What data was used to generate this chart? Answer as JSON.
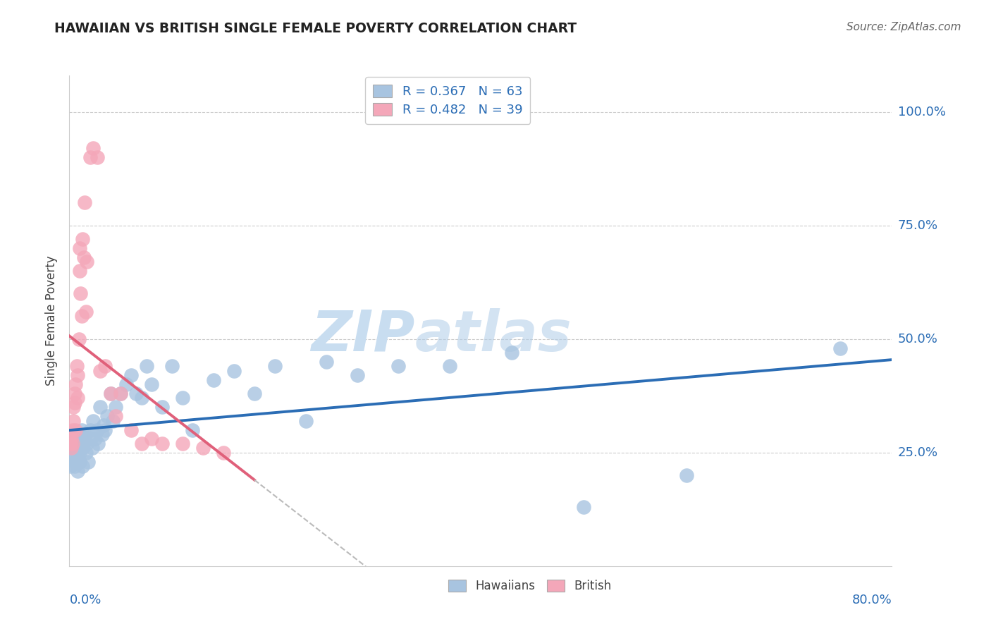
{
  "title": "HAWAIIAN VS BRITISH SINGLE FEMALE POVERTY CORRELATION CHART",
  "source": "Source: ZipAtlas.com",
  "ylabel": "Single Female Poverty",
  "hawaiian_R": 0.367,
  "hawaiian_N": 63,
  "british_R": 0.482,
  "british_N": 39,
  "hawaiian_color": "#a8c4e0",
  "british_color": "#f4a7b9",
  "hawaiian_line_color": "#2b6db5",
  "british_line_color": "#e0607a",
  "dash_color": "#bbbbbb",
  "background_color": "#ffffff",
  "grid_color": "#cccccc",
  "watermark_color": "#ddeeff",
  "x_min": 0.0,
  "x_max": 0.8,
  "y_min": 0.0,
  "y_max": 1.08,
  "y_tick_positions": [
    1.0,
    0.75,
    0.5,
    0.25
  ],
  "y_tick_labels": [
    "100.0%",
    "75.0%",
    "50.0%",
    "25.0%"
  ],
  "hawaiian_x": [
    0.001,
    0.002,
    0.003,
    0.003,
    0.004,
    0.005,
    0.005,
    0.006,
    0.007,
    0.007,
    0.008,
    0.008,
    0.009,
    0.01,
    0.01,
    0.011,
    0.012,
    0.013,
    0.013,
    0.014,
    0.015,
    0.016,
    0.017,
    0.018,
    0.02,
    0.021,
    0.022,
    0.023,
    0.025,
    0.027,
    0.028,
    0.03,
    0.032,
    0.033,
    0.035,
    0.037,
    0.04,
    0.042,
    0.045,
    0.05,
    0.055,
    0.06,
    0.065,
    0.07,
    0.075,
    0.08,
    0.09,
    0.1,
    0.11,
    0.12,
    0.14,
    0.16,
    0.18,
    0.2,
    0.23,
    0.25,
    0.28,
    0.32,
    0.37,
    0.43,
    0.5,
    0.6,
    0.75
  ],
  "hawaiian_y": [
    0.22,
    0.26,
    0.24,
    0.28,
    0.25,
    0.22,
    0.27,
    0.23,
    0.26,
    0.29,
    0.21,
    0.24,
    0.28,
    0.25,
    0.23,
    0.27,
    0.3,
    0.22,
    0.26,
    0.28,
    0.29,
    0.25,
    0.27,
    0.23,
    0.3,
    0.28,
    0.26,
    0.32,
    0.28,
    0.3,
    0.27,
    0.35,
    0.29,
    0.31,
    0.3,
    0.33,
    0.38,
    0.32,
    0.35,
    0.38,
    0.4,
    0.42,
    0.38,
    0.37,
    0.44,
    0.4,
    0.35,
    0.44,
    0.37,
    0.3,
    0.41,
    0.43,
    0.38,
    0.44,
    0.32,
    0.45,
    0.42,
    0.44,
    0.44,
    0.47,
    0.13,
    0.2,
    0.48
  ],
  "british_x": [
    0.001,
    0.002,
    0.002,
    0.003,
    0.003,
    0.004,
    0.004,
    0.005,
    0.005,
    0.006,
    0.006,
    0.007,
    0.008,
    0.008,
    0.009,
    0.01,
    0.01,
    0.011,
    0.012,
    0.013,
    0.014,
    0.015,
    0.016,
    0.017,
    0.02,
    0.023,
    0.027,
    0.03,
    0.035,
    0.04,
    0.045,
    0.05,
    0.06,
    0.07,
    0.08,
    0.09,
    0.11,
    0.13,
    0.15
  ],
  "british_y": [
    0.27,
    0.28,
    0.26,
    0.3,
    0.27,
    0.32,
    0.35,
    0.38,
    0.36,
    0.4,
    0.3,
    0.44,
    0.42,
    0.37,
    0.5,
    0.65,
    0.7,
    0.6,
    0.55,
    0.72,
    0.68,
    0.8,
    0.56,
    0.67,
    0.9,
    0.92,
    0.9,
    0.43,
    0.44,
    0.38,
    0.33,
    0.38,
    0.3,
    0.27,
    0.28,
    0.27,
    0.27,
    0.26,
    0.25
  ],
  "british_line_end_solid": 0.18,
  "british_line_end_dash": 0.45
}
